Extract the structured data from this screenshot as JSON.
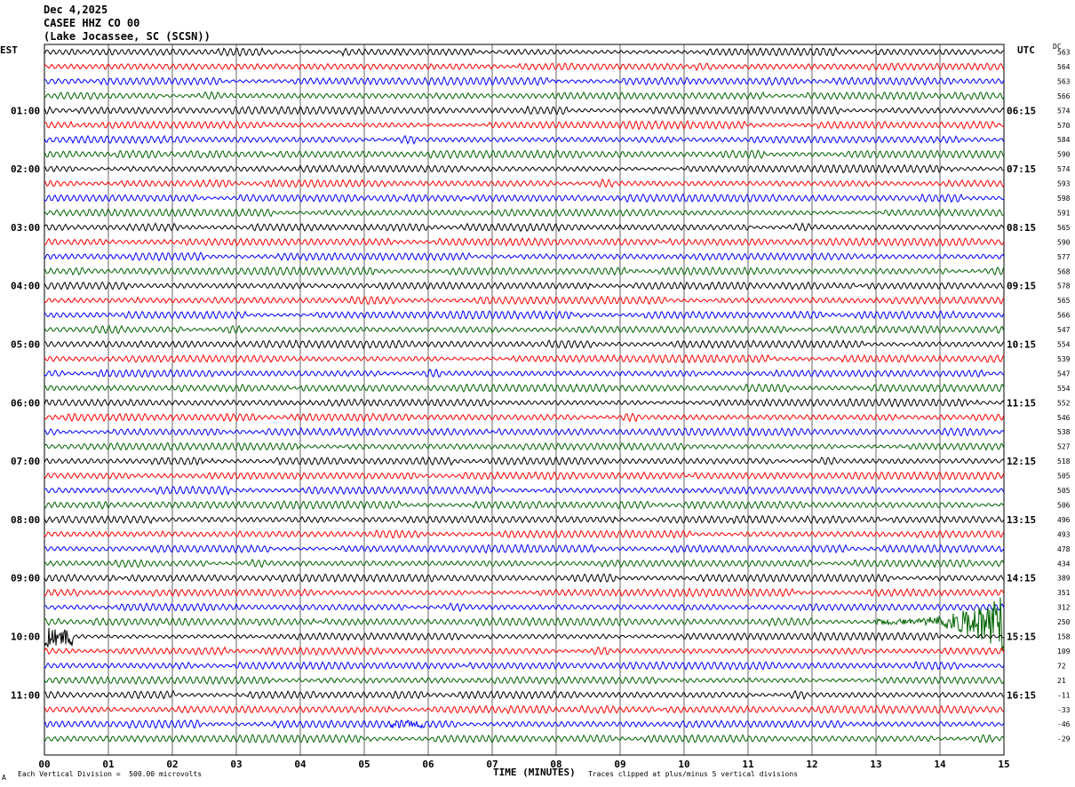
{
  "header": {
    "date": "Dec 4,2025",
    "station": "CASEE HHZ CO 00",
    "location": "(Lake Jocassee, SC (SCSN))"
  },
  "left_zone": "EST",
  "right_zone": "UTC",
  "dc_label": "DC",
  "footer": {
    "scale_text": "Each Vertical Division =  500.00 microvolts",
    "xlabel": "TIME (MINUTES)",
    "clip_text": "Traces clipped at plus/minus 5 vertical divisions",
    "corner_mark": "A"
  },
  "chart_data": {
    "type": "line",
    "title": "CASEE HHZ CO 00",
    "xlabel": "TIME (MINUTES)",
    "x_ticks": [
      "00",
      "01",
      "02",
      "03",
      "04",
      "05",
      "06",
      "07",
      "08",
      "09",
      "10",
      "11",
      "12",
      "13",
      "14",
      "15"
    ],
    "xlim": [
      0,
      15
    ],
    "grid": true,
    "trace_colors": [
      "#000000",
      "#ff0000",
      "#0000ff",
      "#006400"
    ],
    "est_labels": [
      "01:00",
      "02:00",
      "03:00",
      "04:00",
      "05:00",
      "06:00",
      "07:00",
      "08:00",
      "09:00",
      "10:00",
      "11:00"
    ],
    "utc_labels": [
      "06:15",
      "07:15",
      "08:15",
      "09:15",
      "10:15",
      "11:15",
      "12:15",
      "13:15",
      "14:15",
      "15:15",
      "16:15"
    ],
    "dc_offsets": [
      "563",
      "564",
      "563",
      "566",
      "574",
      "570",
      "584",
      "590",
      "574",
      "593",
      "598",
      "591",
      "565",
      "590",
      "577",
      "568",
      "578",
      "565",
      "566",
      "547",
      "554",
      "539",
      "547",
      "554",
      "552",
      "546",
      "538",
      "527",
      "518",
      "505",
      "505",
      "506",
      "496",
      "493",
      "478",
      "434",
      "389",
      "351",
      "312",
      "250",
      "158",
      "109",
      "72",
      "21",
      "-11",
      "-33",
      "-46",
      "-29"
    ],
    "events": [
      {
        "trace": 39,
        "x_start": 13.0,
        "x_end": 15.0,
        "type": "large signal (clipped)"
      },
      {
        "trace": 40,
        "x_start": 0.0,
        "x_end": 0.45,
        "type": "continuation of clipped signal"
      },
      {
        "trace": 46,
        "x_start": 5.4,
        "x_end": 5.9,
        "type": "local burst"
      }
    ]
  }
}
